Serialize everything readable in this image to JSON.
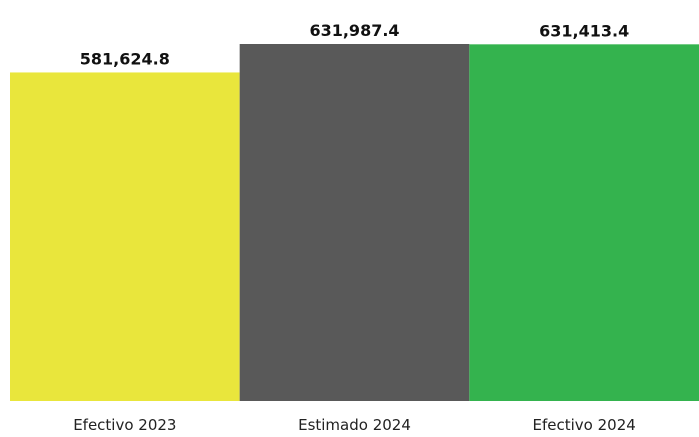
{
  "chart_data": {
    "type": "bar",
    "title": "",
    "xlabel": "",
    "ylabel": "",
    "categories": [
      "Efectivo 2023",
      "Estimado 2024",
      "Efectivo 2024"
    ],
    "values": [
      581624.8,
      631987.4,
      631413.4
    ],
    "value_labels": [
      "581,624.8",
      "631,987.4",
      "631,413.4"
    ],
    "colors": [
      "#e9e63c",
      "#595959",
      "#34b34e"
    ],
    "grid": false,
    "legend": "none"
  }
}
